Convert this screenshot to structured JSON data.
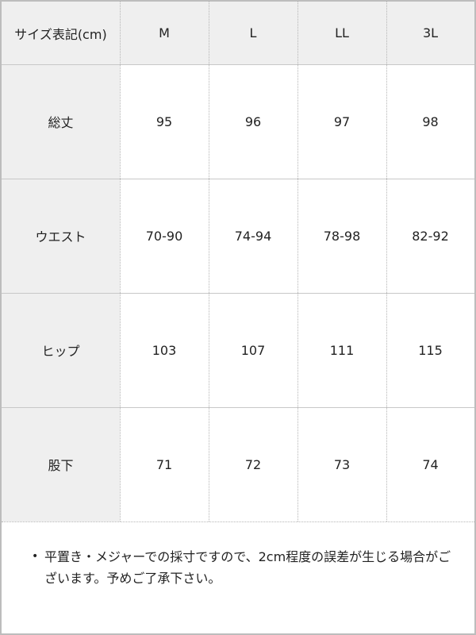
{
  "table": {
    "header": [
      "サイズ表記(cm)",
      "M",
      "L",
      "LL",
      "3L"
    ],
    "rows": [
      {
        "label": "総丈",
        "values": [
          "95",
          "96",
          "97",
          "98"
        ]
      },
      {
        "label": "ウエスト",
        "values": [
          "70-90",
          "74-94",
          "78-98",
          "82-92"
        ]
      },
      {
        "label": "ヒップ",
        "values": [
          "103",
          "107",
          "111",
          "115"
        ]
      },
      {
        "label": "股下",
        "values": [
          "71",
          "72",
          "73",
          "74"
        ]
      }
    ]
  },
  "note": {
    "bullet": "•",
    "text": "平置き・メジャーでの採寸ですので、2cm程度の誤差が生じる場合がございます。予めご了承下さい。"
  },
  "colors": {
    "header_bg": "#efefef",
    "border": "#bdbdbd"
  }
}
